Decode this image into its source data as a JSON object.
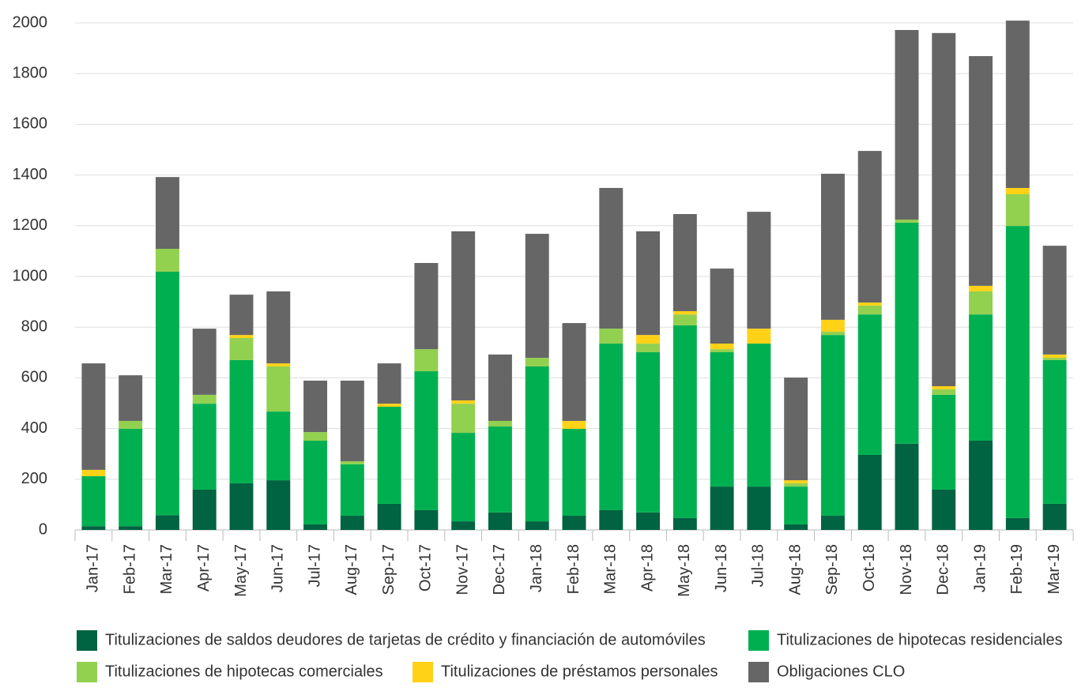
{
  "chart_data": {
    "type": "stacked_bar",
    "categories": [
      "Jan-17",
      "Feb-17",
      "Mar-17",
      "Apr-17",
      "May-17",
      "Jun-17",
      "Jul-17",
      "Aug-17",
      "Sep-17",
      "Oct-17",
      "Nov-17",
      "Dec-17",
      "Jan-18",
      "Feb-18",
      "Mar-18",
      "Apr-18",
      "May-18",
      "Jun-18",
      "Jul-18",
      "Aug-18",
      "Sep-18",
      "Oct-18",
      "Nov-18",
      "Dec-18",
      "Jan-19",
      "Feb-19",
      "Mar-19"
    ],
    "series": [
      {
        "name": "Titulizaciones de saldos deudores de tarjetas de crédito y financiación de automóviles",
        "color": "#006341",
        "values": [
          15,
          15,
          58,
          159,
          184,
          196,
          22,
          56,
          103,
          78,
          34,
          69,
          34,
          56,
          78,
          69,
          47,
          171,
          171,
          22,
          56,
          296,
          340,
          159,
          352,
          47,
          103
        ]
      },
      {
        "name": "Titulizaciones de hipotecas residenciales",
        "color": "#00b050",
        "values": [
          197,
          384,
          961,
          339,
          486,
          271,
          330,
          203,
          383,
          548,
          349,
          339,
          611,
          343,
          657,
          632,
          760,
          530,
          564,
          149,
          713,
          554,
          872,
          374,
          498,
          1152,
          567
        ]
      },
      {
        "name": "Titulizaciones de hipotecas comerciales",
        "color": "#92d050",
        "values": [
          0,
          31,
          90,
          35,
          87,
          178,
          34,
          12,
          0,
          87,
          115,
          22,
          34,
          0,
          59,
          34,
          43,
          12,
          0,
          13,
          13,
          35,
          12,
          22,
          91,
          125,
          9
        ]
      },
      {
        "name": "Titulizaciones de préstamos personales",
        "color": "#ffd218",
        "values": [
          25,
          0,
          0,
          0,
          12,
          12,
          0,
          0,
          12,
          0,
          13,
          0,
          0,
          31,
          0,
          34,
          13,
          22,
          59,
          12,
          47,
          12,
          0,
          12,
          22,
          25,
          13
        ]
      },
      {
        "name": "Obligaciones CLO",
        "color": "#666666",
        "values": [
          420,
          180,
          283,
          261,
          159,
          284,
          203,
          318,
          159,
          340,
          667,
          262,
          489,
          386,
          555,
          409,
          383,
          296,
          461,
          405,
          576,
          598,
          748,
          1393,
          906,
          660,
          429
        ]
      }
    ],
    "ylim": [
      0,
      2000
    ],
    "yticks": [
      0,
      200,
      400,
      600,
      800,
      1000,
      1200,
      1400,
      1600,
      1800,
      2000
    ],
    "grid": true
  }
}
